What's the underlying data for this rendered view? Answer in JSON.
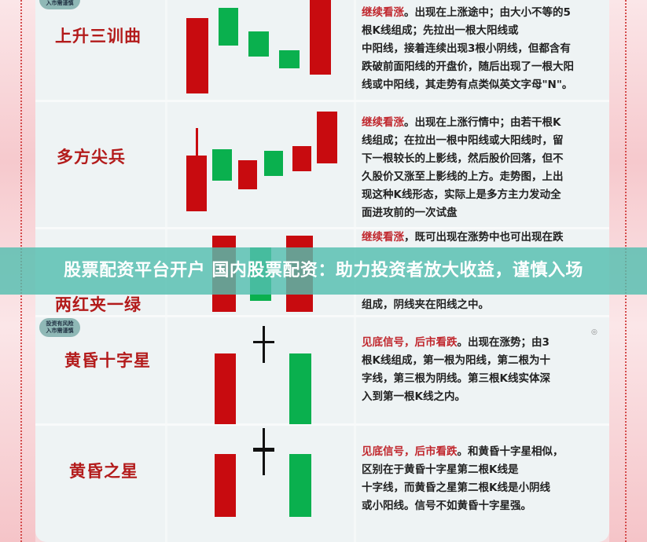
{
  "badge": {
    "line1": "投资有风险",
    "line2": "入市需谨慎"
  },
  "banner": "股票配资平台开户 国内股票配资：助力投资者放大收益，谨慎入场",
  "colors": {
    "bull": "#c80b0f",
    "bear": "#0ab04e",
    "accent": "#b31b1b"
  },
  "patterns": [
    {
      "title": "上升三训曲",
      "highlight": "继续看涨",
      "lines": [
        "。出现在上涨途中；由大小不等的5",
        "根K线组成；先拉出一根大阳线或",
        "中阳线，接着连续出现3根小阴线，但都含有",
        "跌破前面阳线的开盘价，随后出现了一根大阳",
        "线或中阳线，其走势有点类似英文字母\"N\"。"
      ]
    },
    {
      "title": "多方尖兵",
      "highlight": "继续看涨",
      "lines": [
        "。出现在上涨行情中；由若干根K",
        "线组成；在拉出一根中阳线或大阳线时，留",
        "下一根较长的上影线，然后股价回落，但不",
        "久股价又涨至上影线的上方。走势图，上出",
        "现这种K线形态，实际上是多方主力发动全",
        "面进攻前的一次试盘"
      ]
    },
    {
      "title": "两红夹一绿",
      "highlight": "继续看涨",
      "lines": [
        "，既可出现在涨势中也可出现在跌",
        "",
        "组成，阴线夹在阳线之中。"
      ]
    },
    {
      "title": "黄昏十字星",
      "highlight": "见底信号，后市看跌",
      "lines": [
        "。出现在涨势；由3",
        "根K线组成，第一根为阳线，第二根为十",
        "字线，第三根为阴线。第三根K线实体深",
        "入到第一根K线之内。"
      ]
    },
    {
      "title": "黄昏之星",
      "highlight": "见底信号，后市看跌",
      "lines": [
        "。和黄昏十字星相似，",
        "区别在于黄昏十字星第二根K线是",
        "十字线，而黄昏之星第二根K线是小阴线",
        "或小阳线。信号不如黄昏十字星强。"
      ]
    }
  ]
}
